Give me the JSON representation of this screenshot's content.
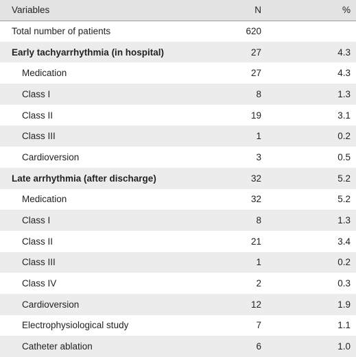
{
  "headers": {
    "variable": "Variables",
    "n": "N",
    "pct": "%"
  },
  "rows": [
    {
      "label": "Total number of patients",
      "n": "620",
      "pct": "",
      "style": "plain"
    },
    {
      "label": "Early tachyarrhythmia (in hospital)",
      "n": "27",
      "pct": "4.3",
      "style": "bold"
    },
    {
      "label": "Medication",
      "n": "27",
      "pct": "4.3",
      "style": "indent"
    },
    {
      "label": "Class I",
      "n": "8",
      "pct": "1.3",
      "style": "indent"
    },
    {
      "label": "Class II",
      "n": "19",
      "pct": "3.1",
      "style": "indent"
    },
    {
      "label": "Class III",
      "n": "1",
      "pct": "0.2",
      "style": "indent"
    },
    {
      "label": "Cardioversion",
      "n": "3",
      "pct": "0.5",
      "style": "indent"
    },
    {
      "label": "Late arrhythmia (after discharge)",
      "n": "32",
      "pct": "5.2",
      "style": "bold"
    },
    {
      "label": "Medication",
      "n": "32",
      "pct": "5.2",
      "style": "indent"
    },
    {
      "label": "Class I",
      "n": "8",
      "pct": "1.3",
      "style": "indent"
    },
    {
      "label": "Class II",
      "n": "21",
      "pct": "3.4",
      "style": "indent"
    },
    {
      "label": "Class III",
      "n": "1",
      "pct": "0.2",
      "style": "indent"
    },
    {
      "label": "Class IV",
      "n": "2",
      "pct": "0.3",
      "style": "indent"
    },
    {
      "label": "Cardioversion",
      "n": "12",
      "pct": "1.9",
      "style": "indent"
    },
    {
      "label": "Electrophysiological study",
      "n": "7",
      "pct": "1.1",
      "style": "indent"
    },
    {
      "label": "Catheter ablation",
      "n": "6",
      "pct": "1.0",
      "style": "indent"
    }
  ]
}
